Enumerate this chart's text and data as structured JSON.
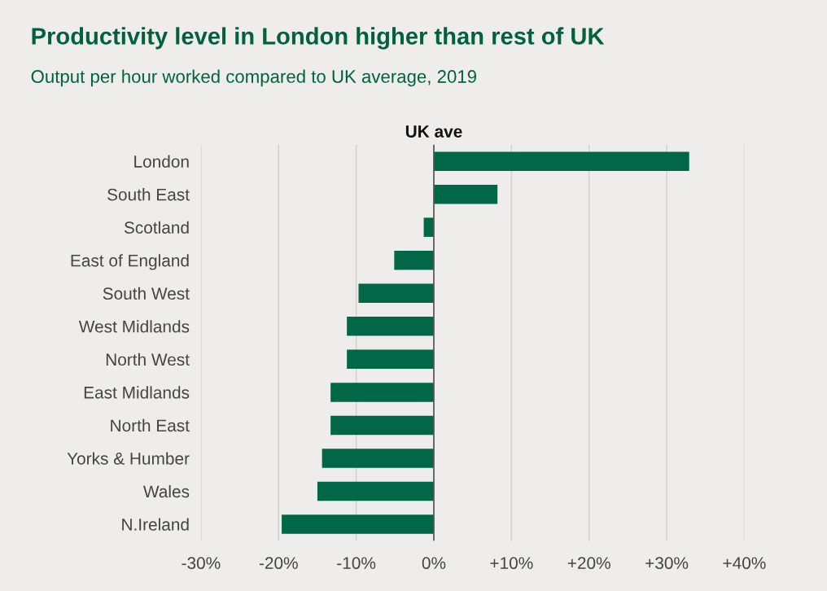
{
  "chart_data": {
    "type": "bar",
    "orientation": "horizontal",
    "title": "Productivity level in London higher than rest of UK",
    "subtitle": "Output per hour worked compared to UK average, 2019",
    "categories": [
      "London",
      "South East",
      "Scotland",
      "East of England",
      "South West",
      "West Midlands",
      "North West",
      "East Midlands",
      "North East",
      "Yorks & Humber",
      "Wales",
      "N.Ireland"
    ],
    "values": [
      32.9,
      8.2,
      -1.3,
      -5.1,
      -9.7,
      -11.2,
      -11.2,
      -13.3,
      -13.3,
      -14.4,
      -15.0,
      -19.6
    ],
    "color": "#006847",
    "xlim": [
      -30,
      40
    ],
    "xticks": [
      {
        "value": -30,
        "label": "-30%"
      },
      {
        "value": -20,
        "label": "-20%"
      },
      {
        "value": -10,
        "label": "-10%"
      },
      {
        "value": 0,
        "label": "0%"
      },
      {
        "value": 10,
        "label": "+10%"
      },
      {
        "value": 20,
        "label": "+20%"
      },
      {
        "value": 30,
        "label": "+30%"
      },
      {
        "value": 40,
        "label": "+40%"
      }
    ],
    "grid": "x",
    "ref_lines": [
      {
        "axis": "x",
        "value": 0,
        "label": "UK ave",
        "color": "#555555"
      }
    ]
  }
}
